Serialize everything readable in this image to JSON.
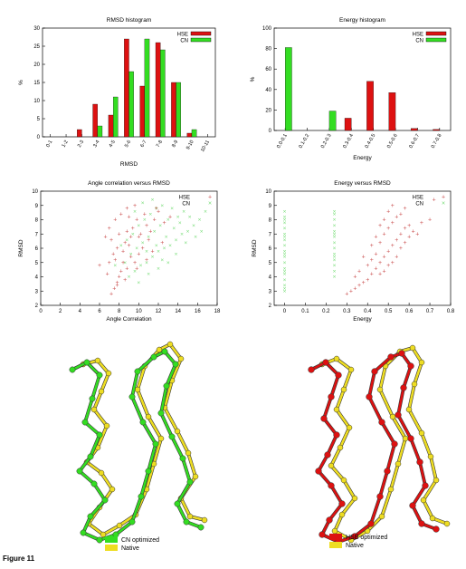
{
  "figure_label": "Figure 11",
  "colors": {
    "hse": "#dd1111",
    "cn": "#33dd22",
    "native": "#eedd22",
    "hse_scatter": "#cc5555",
    "cn_scatter": "#77dd77"
  },
  "chart_data": [
    {
      "type": "bar",
      "title": "RMSD histogram",
      "xlabel": "RMSD",
      "ylabel": "%",
      "ylim": [
        0,
        30
      ],
      "yticks": [
        "0",
        "5",
        "10",
        "15",
        "20",
        "25",
        "30"
      ],
      "legend_position": "top-right",
      "categories": [
        "0-1",
        "1-2",
        "2-3",
        "3-4",
        "4-5",
        "5-6",
        "6-7",
        "7-8",
        "8-9",
        "9-10",
        "10-11"
      ],
      "series": [
        {
          "name": "HSE",
          "values": [
            0,
            0,
            2,
            9,
            6,
            27,
            14,
            26,
            15,
            1,
            0
          ]
        },
        {
          "name": "CN",
          "values": [
            0,
            0,
            0,
            3,
            11,
            18,
            27,
            24,
            15,
            2,
            0
          ]
        }
      ]
    },
    {
      "type": "bar",
      "title": "Energy histogram",
      "xlabel": "Energy",
      "ylabel": "%",
      "ylim": [
        0,
        100
      ],
      "yticks": [
        "0",
        "20",
        "40",
        "60",
        "80",
        "100"
      ],
      "legend_position": "top-right",
      "categories": [
        "0.0-0.1",
        "0.1-0.2",
        "0.2-0.3",
        "0.3-0.4",
        "0.4-0.5",
        "0.5-0.6",
        "0.6-0.7",
        "0.7-0.8"
      ],
      "series": [
        {
          "name": "HSE",
          "values": [
            0,
            0,
            0,
            12,
            48,
            37,
            2,
            1
          ]
        },
        {
          "name": "CN",
          "values": [
            81,
            0,
            19,
            0,
            0,
            0,
            0,
            0
          ]
        }
      ]
    },
    {
      "type": "scatter",
      "title": "Angle correlation versus RMSD",
      "xlabel": "Angle Correlation",
      "ylabel": "RMSD",
      "xlim": [
        0,
        18
      ],
      "ylim": [
        2,
        10
      ],
      "xticks": [
        "0",
        "2",
        "4",
        "6",
        "8",
        "10",
        "12",
        "14",
        "16",
        "18"
      ],
      "yticks": [
        "2",
        "3",
        "4",
        "5",
        "6",
        "7",
        "8",
        "9",
        "10"
      ],
      "legend_position": "top-right",
      "series": [
        {
          "name": "HSE",
          "points": [
            [
              7.2,
              2.8
            ],
            [
              7.5,
              3.2
            ],
            [
              7.8,
              3.6
            ],
            [
              8.0,
              4.0
            ],
            [
              8.2,
              4.4
            ],
            [
              6.8,
              4.2
            ],
            [
              6.0,
              4.8
            ],
            [
              7.0,
              5.0
            ],
            [
              7.6,
              5.2
            ],
            [
              8.4,
              5.0
            ],
            [
              8.8,
              4.6
            ],
            [
              9.2,
              5.4
            ],
            [
              9.6,
              5.0
            ],
            [
              10.0,
              5.6
            ],
            [
              10.4,
              6.0
            ],
            [
              9.0,
              6.2
            ],
            [
              8.6,
              6.4
            ],
            [
              7.8,
              6.0
            ],
            [
              7.2,
              6.6
            ],
            [
              8.0,
              7.0
            ],
            [
              8.8,
              7.2
            ],
            [
              9.4,
              7.4
            ],
            [
              10.2,
              7.0
            ],
            [
              10.8,
              7.6
            ],
            [
              11.2,
              7.2
            ],
            [
              9.8,
              8.0
            ],
            [
              9.0,
              8.2
            ],
            [
              8.2,
              8.4
            ],
            [
              7.6,
              8.0
            ],
            [
              10.6,
              8.4
            ],
            [
              11.6,
              8.0
            ],
            [
              12.0,
              8.6
            ],
            [
              11.0,
              6.6
            ],
            [
              10.0,
              6.8
            ],
            [
              9.2,
              6.8
            ],
            [
              8.4,
              5.8
            ],
            [
              7.4,
              5.6
            ],
            [
              12.6,
              7.8
            ],
            [
              13.2,
              8.2
            ],
            [
              11.4,
              5.8
            ],
            [
              10.8,
              5.2
            ],
            [
              9.8,
              4.6
            ],
            [
              8.6,
              3.8
            ],
            [
              7.8,
              3.4
            ],
            [
              12.4,
              6.4
            ],
            [
              9.6,
              9.0
            ],
            [
              8.8,
              8.8
            ],
            [
              11.8,
              8.8
            ],
            [
              7.0,
              7.4
            ],
            [
              6.6,
              6.8
            ]
          ]
        },
        {
          "name": "CN",
          "points": [
            [
              9.0,
              4.0
            ],
            [
              9.6,
              4.4
            ],
            [
              10.2,
              4.8
            ],
            [
              10.8,
              5.0
            ],
            [
              11.4,
              5.4
            ],
            [
              12.0,
              5.8
            ],
            [
              12.6,
              6.0
            ],
            [
              13.2,
              6.2
            ],
            [
              13.8,
              6.6
            ],
            [
              14.4,
              7.0
            ],
            [
              15.0,
              7.2
            ],
            [
              15.6,
              7.6
            ],
            [
              16.2,
              8.0
            ],
            [
              16.8,
              8.6
            ],
            [
              14.0,
              8.2
            ],
            [
              13.0,
              8.0
            ],
            [
              12.2,
              7.6
            ],
            [
              11.6,
              7.2
            ],
            [
              11.0,
              6.8
            ],
            [
              10.4,
              6.4
            ],
            [
              9.8,
              6.0
            ],
            [
              9.2,
              5.6
            ],
            [
              8.6,
              5.0
            ],
            [
              10.0,
              7.6
            ],
            [
              10.6,
              8.0
            ],
            [
              11.2,
              8.4
            ],
            [
              11.8,
              8.8
            ],
            [
              12.4,
              9.0
            ],
            [
              13.4,
              8.8
            ],
            [
              14.6,
              8.6
            ],
            [
              15.2,
              8.2
            ],
            [
              12.8,
              6.8
            ],
            [
              13.6,
              7.4
            ],
            [
              14.2,
              7.8
            ],
            [
              9.4,
              7.0
            ],
            [
              8.8,
              6.6
            ],
            [
              8.2,
              6.2
            ],
            [
              10.8,
              5.8
            ],
            [
              11.8,
              6.2
            ],
            [
              12.4,
              5.2
            ],
            [
              13.0,
              5.0
            ],
            [
              14.8,
              6.4
            ],
            [
              15.8,
              6.8
            ],
            [
              9.6,
              8.6
            ],
            [
              10.4,
              9.2
            ],
            [
              11.4,
              9.4
            ],
            [
              7.6,
              4.8
            ],
            [
              13.8,
              5.6
            ],
            [
              16.4,
              7.2
            ],
            [
              12.0,
              4.6
            ],
            [
              10.0,
              3.6
            ],
            [
              11.0,
              4.2
            ]
          ]
        }
      ]
    },
    {
      "type": "scatter",
      "title": "Energy versus RMSD",
      "xlabel": "Energy",
      "ylabel": "RMSD",
      "xlim": [
        -0.05,
        0.8
      ],
      "ylim": [
        2,
        10
      ],
      "xticks": [
        "0",
        "0.1",
        "0.2",
        "0.3",
        "0.4",
        "0.5",
        "0.6",
        "0.7",
        "0.8"
      ],
      "yticks": [
        "2",
        "3",
        "4",
        "5",
        "6",
        "7",
        "8",
        "9",
        "10"
      ],
      "legend_position": "top-right",
      "series": [
        {
          "name": "HSE",
          "points": [
            [
              0.3,
              2.8
            ],
            [
              0.32,
              3.0
            ],
            [
              0.34,
              3.2
            ],
            [
              0.36,
              3.4
            ],
            [
              0.38,
              3.6
            ],
            [
              0.4,
              3.8
            ],
            [
              0.42,
              4.2
            ],
            [
              0.44,
              4.6
            ],
            [
              0.46,
              5.0
            ],
            [
              0.48,
              5.4
            ],
            [
              0.5,
              5.8
            ],
            [
              0.52,
              6.2
            ],
            [
              0.54,
              6.6
            ],
            [
              0.56,
              7.0
            ],
            [
              0.58,
              7.4
            ],
            [
              0.6,
              7.6
            ],
            [
              0.62,
              7.2
            ],
            [
              0.66,
              7.8
            ],
            [
              0.7,
              8.0
            ],
            [
              0.72,
              9.4
            ],
            [
              0.44,
              5.6
            ],
            [
              0.46,
              6.4
            ],
            [
              0.48,
              7.0
            ],
            [
              0.5,
              7.4
            ],
            [
              0.52,
              7.8
            ],
            [
              0.54,
              8.2
            ],
            [
              0.56,
              8.4
            ],
            [
              0.42,
              5.2
            ],
            [
              0.4,
              4.8
            ],
            [
              0.38,
              5.4
            ],
            [
              0.44,
              6.8
            ],
            [
              0.46,
              7.6
            ],
            [
              0.48,
              8.0
            ],
            [
              0.5,
              8.6
            ],
            [
              0.52,
              5.0
            ],
            [
              0.54,
              5.4
            ],
            [
              0.56,
              6.0
            ],
            [
              0.58,
              6.4
            ],
            [
              0.6,
              6.8
            ],
            [
              0.36,
              4.4
            ],
            [
              0.34,
              4.0
            ],
            [
              0.5,
              4.8
            ],
            [
              0.46,
              4.2
            ],
            [
              0.42,
              6.2
            ],
            [
              0.58,
              8.8
            ],
            [
              0.64,
              7.0
            ],
            [
              0.52,
              9.0
            ],
            [
              0.48,
              4.4
            ]
          ]
        },
        {
          "name": "CN",
          "points": [
            [
              0.0,
              3.0
            ],
            [
              0.0,
              3.4
            ],
            [
              0.0,
              3.8
            ],
            [
              0.0,
              4.2
            ],
            [
              0.0,
              4.6
            ],
            [
              0.0,
              5.0
            ],
            [
              0.0,
              5.4
            ],
            [
              0.0,
              5.8
            ],
            [
              0.0,
              6.2
            ],
            [
              0.0,
              6.6
            ],
            [
              0.0,
              7.0
            ],
            [
              0.0,
              7.4
            ],
            [
              0.0,
              7.8
            ],
            [
              0.0,
              8.2
            ],
            [
              0.0,
              8.6
            ],
            [
              0.0,
              3.2
            ],
            [
              0.0,
              4.4
            ],
            [
              0.0,
              5.6
            ],
            [
              0.0,
              6.8
            ],
            [
              0.0,
              8.0
            ],
            [
              0.24,
              4.0
            ],
            [
              0.24,
              4.4
            ],
            [
              0.24,
              4.8
            ],
            [
              0.24,
              5.2
            ],
            [
              0.24,
              5.6
            ],
            [
              0.24,
              6.0
            ],
            [
              0.24,
              6.4
            ],
            [
              0.24,
              6.8
            ],
            [
              0.24,
              7.2
            ],
            [
              0.24,
              7.6
            ],
            [
              0.24,
              8.0
            ],
            [
              0.24,
              8.4
            ],
            [
              0.24,
              8.6
            ],
            [
              0.24,
              5.4
            ],
            [
              0.24,
              7.0
            ]
          ]
        }
      ]
    }
  ],
  "structures": [
    {
      "legend": [
        "CN optimized",
        "Native"
      ]
    },
    {
      "legend": [
        "HSE optimized",
        "Native"
      ]
    }
  ]
}
